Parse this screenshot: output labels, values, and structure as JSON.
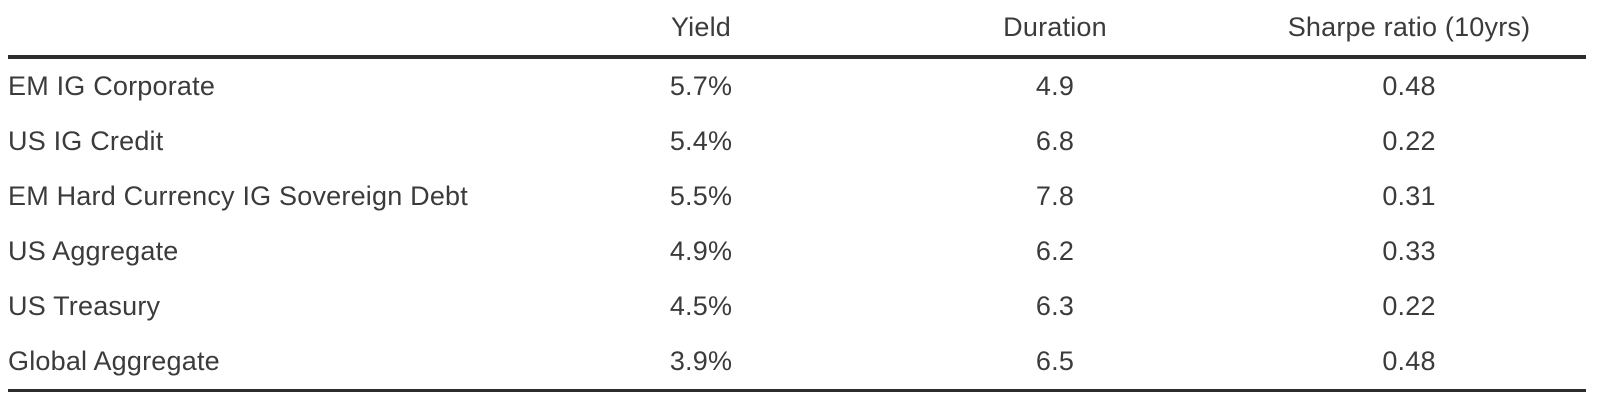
{
  "colors": {
    "background": "#ffffff",
    "text": "#3b3b3b",
    "rule": "#2d2d2d"
  },
  "table": {
    "header": {
      "label": "",
      "yield": "Yield",
      "duration": "Duration",
      "sharpe": "Sharpe ratio (10yrs)"
    },
    "rows": [
      {
        "label": "EM IG Corporate",
        "yield": "5.7%",
        "duration": "4.9",
        "sharpe": "0.48"
      },
      {
        "label": "US IG Credit",
        "yield": "5.4%",
        "duration": "6.8",
        "sharpe": "0.22"
      },
      {
        "label": "EM Hard Currency IG Sovereign Debt",
        "yield": "5.5%",
        "duration": "7.8",
        "sharpe": "0.31"
      },
      {
        "label": "US Aggregate",
        "yield": "4.9%",
        "duration": "6.2",
        "sharpe": "0.33"
      },
      {
        "label": "US Treasury",
        "yield": "4.5%",
        "duration": "6.3",
        "sharpe": "0.22"
      },
      {
        "label": "Global Aggregate",
        "yield": "3.9%",
        "duration": "6.5",
        "sharpe": "0.48"
      }
    ]
  },
  "chart_data": {
    "type": "table",
    "columns": [
      "Yield",
      "Duration",
      "Sharpe ratio (10yrs)"
    ],
    "row_labels": [
      "EM IG Corporate",
      "US IG Credit",
      "EM Hard Currency IG Sovereign Debt",
      "US Aggregate",
      "US Treasury",
      "Global Aggregate"
    ],
    "rows": [
      [
        "5.7%",
        "4.9",
        "0.48"
      ],
      [
        "5.4%",
        "6.8",
        "0.22"
      ],
      [
        "5.5%",
        "7.8",
        "0.31"
      ],
      [
        "4.9%",
        "6.2",
        "0.33"
      ],
      [
        "4.5%",
        "6.3",
        "0.22"
      ],
      [
        "3.9%",
        "6.5",
        "0.48"
      ]
    ],
    "yield_values_pct": [
      5.7,
      5.4,
      5.5,
      4.9,
      4.5,
      3.9
    ],
    "duration_values": [
      4.9,
      6.8,
      7.8,
      6.2,
      6.3,
      6.5
    ],
    "sharpe_values": [
      0.48,
      0.22,
      0.31,
      0.33,
      0.22,
      0.48
    ],
    "title": "",
    "legend": "none",
    "grid": "off"
  }
}
